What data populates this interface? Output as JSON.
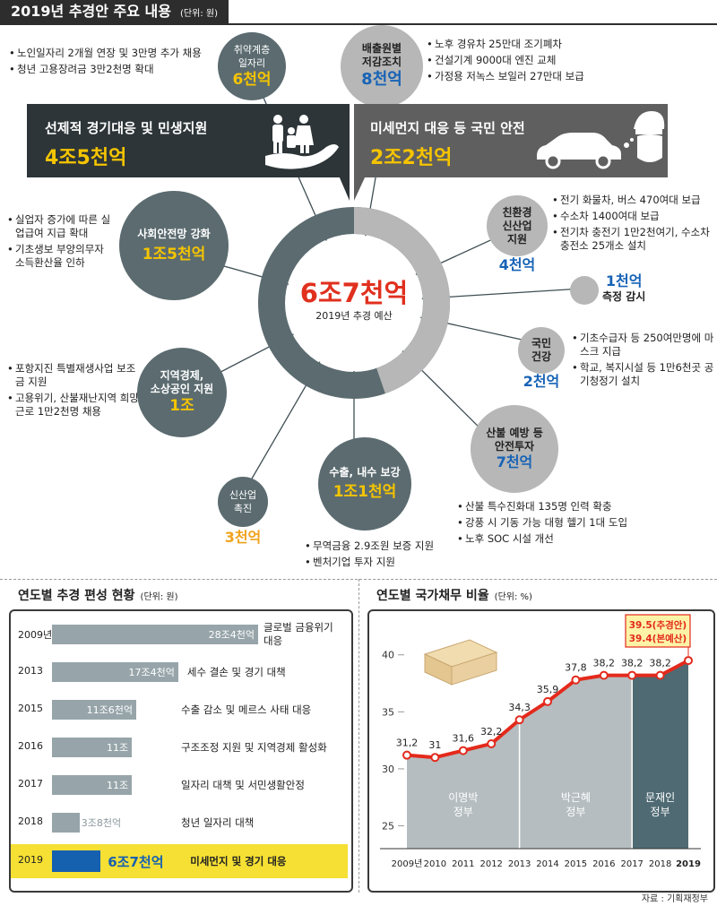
{
  "header": {
    "title": "2019년 추경안 주요 내용",
    "unit": "(단위: 원)"
  },
  "center": {
    "amount": "6조7천억",
    "label": "2019년 추경 예산"
  },
  "banner_left": {
    "title": "선제적 경기대응 및 민생지원",
    "amount": "4조5천억"
  },
  "banner_right": {
    "title": "미세먼지 대응 등 국민 안전",
    "amount": "2조2천억"
  },
  "circles": {
    "jobs": {
      "line1": "취약계층",
      "line2": "일자리",
      "amount": "6천억"
    },
    "safety_net": {
      "title": "사회안전망 강화",
      "amount": "1조5천억"
    },
    "regional": {
      "line1": "지역경제,",
      "line2": "소상공인 지원",
      "amount": "1조"
    },
    "export": {
      "title": "수출, 내수 보강",
      "amount": "1조1천억"
    },
    "newindustry": {
      "line1": "신산업",
      "line2": "촉진",
      "amount": "3천억"
    },
    "emission": {
      "line1": "배출원별",
      "line2": "저감조치",
      "amount": "8천억"
    },
    "eco": {
      "line1": "친환경",
      "line2": "신산업",
      "line3": "지원",
      "amount": "4천억"
    },
    "measure": {
      "amount": "1천억",
      "label": "측정 감시"
    },
    "health": {
      "line1": "국민",
      "line2": "건강",
      "amount": "2천억"
    },
    "disaster": {
      "line1": "산불 예방 등",
      "line2": "안전투자",
      "amount": "7천억"
    }
  },
  "notes": {
    "jobs": [
      "노인일자리 2개월 연장 및 3만명 추가 채용",
      "청년 고용장려금 3만2천명 확대"
    ],
    "safety": [
      "실업자 증가에 따른 실업급여 지급 확대",
      "기초생보 부양의무자 소득환산율 인하"
    ],
    "regional": [
      "포항지진 특별재생사업 보조금 지원",
      "고용위기, 산불재난지역 희망근로 1만2천명 채용"
    ],
    "export": [
      "무역금융 2.9조원 보증 지원",
      "벤처기업 투자 지원"
    ],
    "emission": [
      "노후 경유차 25만대 조기폐차",
      "건설기계 9000대 엔진 교체",
      "가정용 저녹스 보일러 27만대 보급"
    ],
    "eco": [
      "전기 화물차, 버스 470여대 보급",
      "수소차 1400여대 보급",
      "전기차 충전기 1만2천여기, 수소차 충전소 25개소 설치"
    ],
    "health": [
      "기초수급자 등 250여만명에 마스크 지급",
      "학교, 복지시설 등 1만6천곳 공기청정기 설치"
    ],
    "disaster": [
      "산불 특수진화대 135명 인력 확충",
      "강풍 시 기동 가능 대형 헬기 1대 도입",
      "노후 SOC 시설 개선"
    ]
  },
  "chart_data": [
    {
      "type": "bar",
      "title": "연도별 추경 편성 현황",
      "unit": "(단위: 원)",
      "categories": [
        "2009년",
        "2013",
        "2015",
        "2016",
        "2017",
        "2018",
        "2019"
      ],
      "values": [
        28.4,
        17.4,
        11.6,
        11,
        11,
        3.8,
        6.7
      ],
      "value_labels": [
        "28조4천억",
        "17조4천억",
        "11조6천억",
        "11조",
        "11조",
        "3조8천억",
        "6조7천억"
      ],
      "descriptions": [
        "글로벌 금융위기 대응",
        "세수 결손 및 경기 대책",
        "수출 감소 및 메르스 사태 대응",
        "구조조정 지원 및 지역경제 활성화",
        "일자리 대책 및 서민생활안정",
        "청년 일자리 대책",
        "미세먼지 및 경기 대응"
      ],
      "highlight": "2019",
      "highlight_color": "#f5e033",
      "highlight_bar_color": "#1660b0"
    },
    {
      "type": "line",
      "title": "연도별 국가채무 비율",
      "unit": "(단위: %)",
      "x": [
        "2009년",
        "2010",
        "2011",
        "2012",
        "2013",
        "2014",
        "2015",
        "2016",
        "2017",
        "2018",
        "2019"
      ],
      "y": [
        31.2,
        31,
        31.6,
        32.2,
        34.3,
        35.9,
        37.8,
        38.2,
        38.2,
        38.2,
        39.5
      ],
      "y_labels": [
        "31,2",
        "31",
        "31,6",
        "32,2",
        "34,3",
        "35,9",
        "37,8",
        "38,2",
        "38,2",
        "38,2"
      ],
      "ylim": [
        23,
        41
      ],
      "yticks": [
        25,
        30,
        35,
        40
      ],
      "annotation": [
        "39.5(추경안)",
        "39.4(본예산)"
      ],
      "periods": [
        {
          "name_line1": "이명박",
          "name_line2": "정부",
          "from": "2009년",
          "to": "2013"
        },
        {
          "name_line1": "박근혜",
          "name_line2": "정부",
          "from": "2013",
          "to": "2017"
        },
        {
          "name_line1": "문재인",
          "name_line2": "정부",
          "from": "2017",
          "to": "2019"
        }
      ],
      "line_color": "#e32a1c"
    }
  ],
  "source": "자료 : 기획재정부"
}
